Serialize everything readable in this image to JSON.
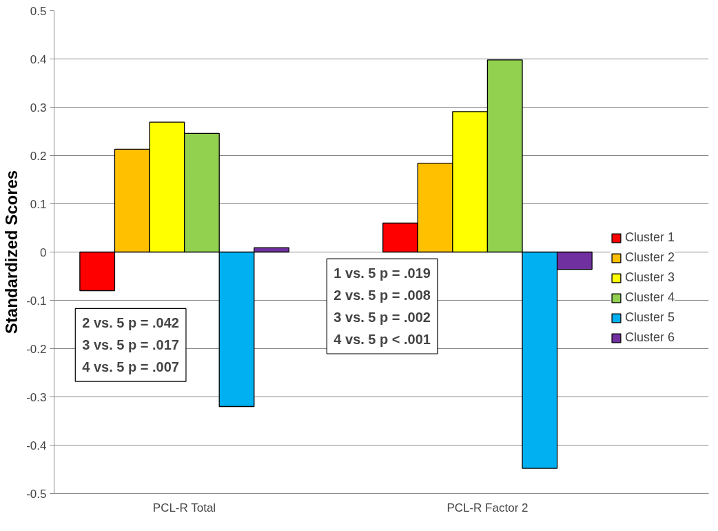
{
  "chart_data": {
    "type": "bar",
    "ylabel": "Standardized Scores",
    "categories": [
      "PCL-R Total",
      "PCL-R Factor 2"
    ],
    "series": [
      {
        "name": "Cluster 1",
        "color": "#ff0000",
        "values": [
          -0.08,
          0.06
        ]
      },
      {
        "name": "Cluster 2",
        "color": "#ffc000",
        "values": [
          0.213,
          0.184
        ]
      },
      {
        "name": "Cluster 3",
        "color": "#ffff00",
        "values": [
          0.269,
          0.291
        ]
      },
      {
        "name": "Cluster 4",
        "color": "#92d050",
        "values": [
          0.246,
          0.398
        ]
      },
      {
        "name": "Cluster 5",
        "color": "#00b0f0",
        "values": [
          -0.32,
          -0.448
        ]
      },
      {
        "name": "Cluster 6",
        "color": "#7030a0",
        "values": [
          0.009,
          -0.036
        ]
      }
    ],
    "ylim": [
      -0.5,
      0.5
    ],
    "yticks": [
      -0.5,
      -0.4,
      -0.3,
      -0.2,
      -0.1,
      0,
      0.1,
      0.2,
      0.3,
      0.4,
      0.5
    ],
    "grid": "y",
    "legend": "right",
    "annotations": [
      "2 vs. 5 p = .042\n3 vs. 5 p = .017\n4 vs. 5 p = .007",
      "1 vs. 5 p = .019\n2 vs. 5 p = .008\n3 vs. 5 p = .002\n4 vs. 5 p < .001"
    ]
  }
}
